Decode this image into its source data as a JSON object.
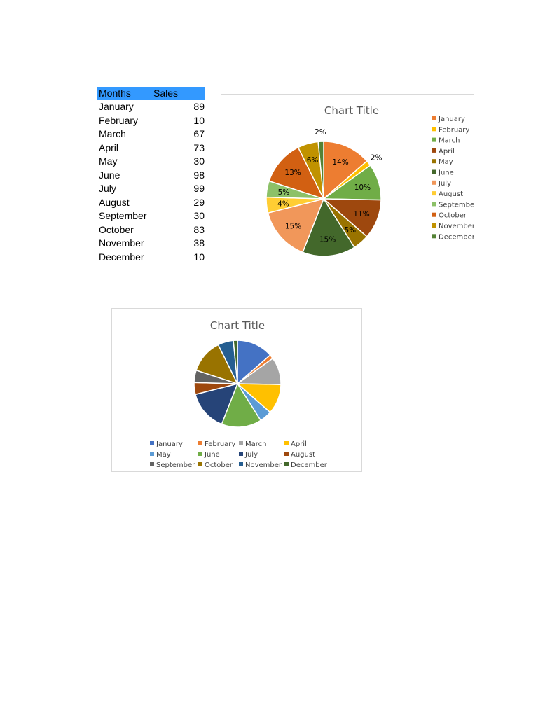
{
  "table": {
    "headers": [
      "Months",
      "Sales"
    ],
    "rows": [
      [
        "January",
        "89"
      ],
      [
        "February",
        "10"
      ],
      [
        "March",
        "67"
      ],
      [
        "April",
        "73"
      ],
      [
        "May",
        "30"
      ],
      [
        "June",
        "98"
      ],
      [
        "July",
        "99"
      ],
      [
        "August",
        "29"
      ],
      [
        "September",
        "30"
      ],
      [
        "October",
        "83"
      ],
      [
        "November",
        "38"
      ],
      [
        "December",
        "10"
      ]
    ]
  },
  "chart_data": [
    {
      "type": "pie",
      "title": "Chart Title",
      "categories": [
        "January",
        "February",
        "March",
        "April",
        "May",
        "June",
        "July",
        "August",
        "September",
        "October",
        "November",
        "December"
      ],
      "values": [
        89,
        10,
        67,
        73,
        30,
        98,
        99,
        29,
        30,
        83,
        38,
        10
      ],
      "data_labels": [
        "14%",
        "2%",
        "10%",
        "11%",
        "5%",
        "15%",
        "15%",
        "4%",
        "5%",
        "13%",
        "6%",
        "2%"
      ],
      "colors": [
        "#ed7d31",
        "#ffc000",
        "#70ad47",
        "#9e480e",
        "#997300",
        "#43682b",
        "#f1975a",
        "#ffcd33",
        "#8cc168",
        "#d26012",
        "#c09200",
        "#548235"
      ],
      "legend": "right"
    },
    {
      "type": "pie",
      "title": "Chart Title",
      "categories": [
        "January",
        "February",
        "March",
        "April",
        "May",
        "June",
        "July",
        "August",
        "September",
        "October",
        "November",
        "December"
      ],
      "values": [
        89,
        10,
        67,
        73,
        30,
        98,
        99,
        29,
        30,
        83,
        38,
        10
      ],
      "colors": [
        "#4472c4",
        "#ed7d31",
        "#a5a5a5",
        "#ffc000",
        "#5b9bd5",
        "#70ad47",
        "#264478",
        "#9e480e",
        "#636363",
        "#997300",
        "#255e91",
        "#43682b"
      ],
      "legend": "bottom"
    }
  ]
}
